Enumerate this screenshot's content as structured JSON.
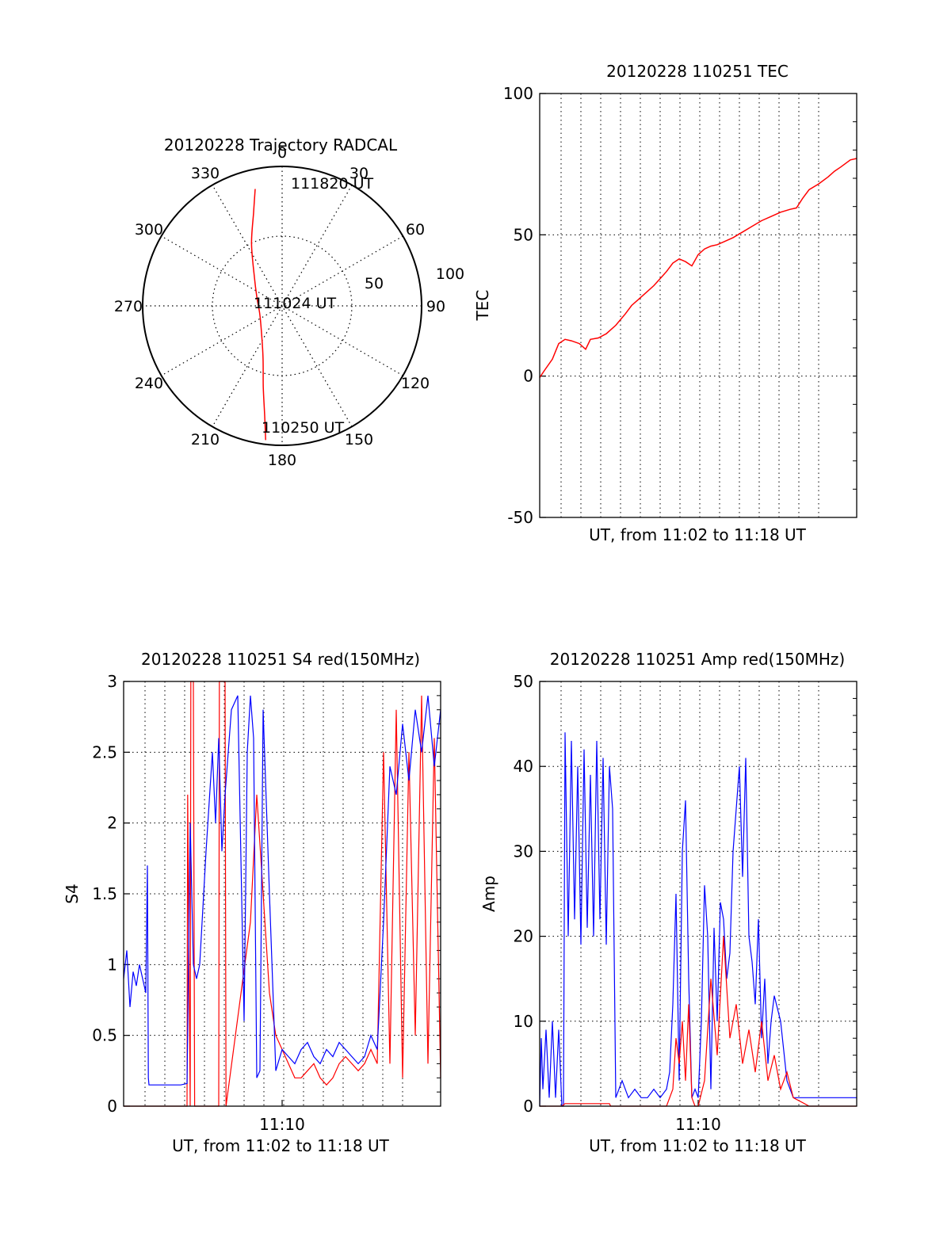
{
  "colors": {
    "red": "#ff0000",
    "blue": "#0000ff",
    "axis": "#000000",
    "grid": "#000000"
  },
  "chart_data": [
    {
      "id": "polar",
      "type": "polar-trajectory",
      "title": "20120228 Trajectory RADCAL",
      "angle_labels": [
        "0",
        "30",
        "60",
        "90",
        "120",
        "150",
        "180",
        "210",
        "240",
        "270",
        "300",
        "330"
      ],
      "radial_ticks": [
        {
          "value": 50,
          "label": "50"
        },
        {
          "value": 100,
          "label": "100"
        }
      ],
      "rlim": [
        0,
        100
      ],
      "trajectory": {
        "color": "red",
        "points": [
          {
            "az": 187,
            "r": 97
          },
          {
            "az": 189,
            "r": 80
          },
          {
            "az": 193,
            "r": 60
          },
          {
            "az": 200,
            "r": 40
          },
          {
            "az": 216,
            "r": 25
          },
          {
            "az": 251,
            "r": 17
          },
          {
            "az": 288,
            "r": 19
          },
          {
            "az": 318,
            "r": 30
          },
          {
            "az": 334,
            "r": 50
          },
          {
            "az": 343,
            "r": 70
          },
          {
            "az": 347,
            "r": 86
          }
        ]
      },
      "annotations": [
        {
          "text": "111820 UT",
          "az": 354,
          "r": 90
        },
        {
          "text": "111024 UT",
          "az": 0,
          "r": 0
        },
        {
          "text": "110250 UT",
          "az": 172,
          "r": 94
        }
      ]
    },
    {
      "id": "tec",
      "type": "line",
      "title": "20120228 110251 TEC",
      "xlabel": "UT, from 11:02 to 11:18 UT",
      "ylabel": "TEC",
      "xlim": [
        0,
        1
      ],
      "ylim": [
        -50,
        100
      ],
      "yticks": [
        -50,
        0,
        50,
        100
      ],
      "xticks": [],
      "xtick_labels": [],
      "grid": true,
      "series": [
        {
          "color": "red",
          "x": [
            0.0,
            0.015,
            0.04,
            0.06,
            0.08,
            0.1,
            0.125,
            0.145,
            0.16,
            0.185,
            0.21,
            0.24,
            0.27,
            0.29,
            0.31,
            0.34,
            0.36,
            0.38,
            0.4,
            0.42,
            0.44,
            0.46,
            0.48,
            0.5,
            0.52,
            0.54,
            0.56,
            0.58,
            0.61,
            0.64,
            0.67,
            0.7,
            0.73,
            0.76,
            0.79,
            0.81,
            0.83,
            0.85,
            0.88,
            0.91,
            0.93,
            0.95,
            0.98,
            1.0
          ],
          "y": [
            -0.5,
            2.0,
            6.0,
            11.5,
            13.0,
            12.5,
            11.5,
            9.5,
            13.0,
            13.5,
            15.0,
            18.0,
            22.0,
            25.0,
            27.0,
            30.0,
            32.0,
            34.5,
            37.0,
            40.0,
            41.5,
            40.5,
            39.0,
            43.0,
            45.0,
            46.0,
            46.5,
            47.5,
            49.0,
            51.0,
            53.0,
            55.0,
            56.5,
            58.0,
            59.0,
            59.5,
            63.0,
            66.0,
            68.0,
            70.5,
            72.5,
            74.0,
            76.5,
            77.0
          ]
        }
      ]
    },
    {
      "id": "s4",
      "type": "line",
      "title": "20120228 110251 S4 red(150MHz)",
      "xlabel": "UT, from 11:02 to 11:18 UT",
      "ylabel": "S4",
      "xlim": [
        0,
        1
      ],
      "ylim": [
        0,
        3
      ],
      "yticks": [
        0,
        0.5,
        1,
        1.5,
        2,
        2.5,
        3
      ],
      "ytick_labels": [
        "0",
        "0.5",
        "1",
        "1.5",
        "2",
        "2.5",
        "3"
      ],
      "xticks": [
        0.5
      ],
      "xtick_labels": [
        "11:10"
      ],
      "grid": true,
      "series": [
        {
          "color": "red",
          "x": [
            0.0,
            0.04,
            0.08,
            0.19,
            0.2,
            0.202,
            0.21,
            0.212,
            0.22,
            0.224,
            0.3,
            0.302,
            0.32,
            0.323,
            0.4,
            0.42,
            0.44,
            0.46,
            0.48,
            0.5,
            0.52,
            0.54,
            0.56,
            0.58,
            0.6,
            0.62,
            0.64,
            0.66,
            0.68,
            0.7,
            0.72,
            0.74,
            0.76,
            0.78,
            0.8,
            0.82,
            0.84,
            0.86,
            0.88,
            0.9,
            0.92,
            0.94,
            0.96,
            0.98,
            1.0
          ],
          "y": [
            0,
            0,
            0,
            0,
            0,
            2.2,
            0,
            3,
            3,
            0,
            0,
            3,
            3,
            0,
            1.3,
            2.2,
            1.5,
            0.8,
            0.5,
            0.4,
            0.3,
            0.2,
            0.2,
            0.25,
            0.3,
            0.2,
            0.15,
            0.2,
            0.3,
            0.35,
            0.3,
            0.25,
            0.3,
            0.4,
            0.3,
            2.5,
            0.3,
            2.8,
            0.2,
            2.5,
            0.5,
            2.9,
            0.3,
            2.6,
            0.2
          ]
        },
        {
          "color": "blue",
          "x": [
            0.0,
            0.01,
            0.02,
            0.03,
            0.04,
            0.05,
            0.06,
            0.07,
            0.075,
            0.078,
            0.08,
            0.1,
            0.14,
            0.18,
            0.2,
            0.21,
            0.22,
            0.23,
            0.24,
            0.26,
            0.28,
            0.29,
            0.3,
            0.31,
            0.32,
            0.34,
            0.36,
            0.38,
            0.39,
            0.4,
            0.41,
            0.42,
            0.43,
            0.44,
            0.46,
            0.48,
            0.5,
            0.52,
            0.54,
            0.56,
            0.58,
            0.6,
            0.62,
            0.64,
            0.66,
            0.68,
            0.7,
            0.72,
            0.74,
            0.76,
            0.78,
            0.8,
            0.82,
            0.84,
            0.86,
            0.88,
            0.9,
            0.92,
            0.94,
            0.96,
            0.98,
            1.0
          ],
          "y": [
            0.9,
            1.1,
            0.7,
            0.95,
            0.85,
            1.0,
            0.9,
            0.8,
            1.7,
            0.2,
            0.15,
            0.15,
            0.15,
            0.15,
            0.16,
            2.0,
            1.0,
            0.9,
            1.0,
            1.8,
            2.5,
            2.0,
            2.6,
            1.8,
            2.2,
            2.8,
            2.9,
            0.6,
            2.5,
            2.9,
            2.6,
            0.2,
            0.25,
            2.8,
            1.5,
            0.25,
            0.4,
            0.35,
            0.3,
            0.4,
            0.45,
            0.35,
            0.3,
            0.4,
            0.35,
            0.45,
            0.4,
            0.35,
            0.3,
            0.35,
            0.5,
            0.4,
            1.3,
            2.4,
            2.2,
            2.7,
            2.3,
            2.8,
            2.5,
            2.9,
            2.4,
            2.8
          ]
        }
      ]
    },
    {
      "id": "amp",
      "type": "line",
      "title": "20120228 110251 Amp red(150MHz)",
      "xlabel": "UT, from 11:02 to 11:18 UT",
      "ylabel": "Amp",
      "xlim": [
        0,
        1
      ],
      "ylim": [
        0,
        50
      ],
      "yticks": [
        0,
        10,
        20,
        30,
        40,
        50
      ],
      "ytick_labels": [
        "0",
        "10",
        "20",
        "30",
        "40",
        "50"
      ],
      "xticks": [
        0.5
      ],
      "xtick_labels": [
        "11:10"
      ],
      "grid": true,
      "series": [
        {
          "color": "blue",
          "x": [
            0.0,
            0.005,
            0.01,
            0.02,
            0.03,
            0.04,
            0.05,
            0.06,
            0.07,
            0.075,
            0.08,
            0.09,
            0.1,
            0.11,
            0.12,
            0.13,
            0.14,
            0.15,
            0.16,
            0.17,
            0.18,
            0.19,
            0.2,
            0.21,
            0.22,
            0.23,
            0.24,
            0.26,
            0.28,
            0.3,
            0.32,
            0.34,
            0.36,
            0.38,
            0.4,
            0.41,
            0.42,
            0.43,
            0.44,
            0.45,
            0.46,
            0.47,
            0.48,
            0.49,
            0.5,
            0.51,
            0.52,
            0.53,
            0.54,
            0.55,
            0.56,
            0.57,
            0.58,
            0.59,
            0.6,
            0.61,
            0.62,
            0.63,
            0.64,
            0.65,
            0.66,
            0.67,
            0.68,
            0.69,
            0.7,
            0.71,
            0.72,
            0.73,
            0.74,
            0.76,
            0.78,
            0.8,
            0.85,
            0.9,
            0.95,
            1.0
          ],
          "y": [
            0,
            8,
            2,
            9,
            1,
            10,
            1,
            9,
            0,
            0,
            44,
            20,
            43,
            22,
            40,
            19,
            42,
            21,
            39,
            20,
            43,
            22,
            41,
            19,
            40,
            35,
            1,
            3,
            1,
            2,
            1,
            1,
            2,
            1,
            2,
            4,
            12,
            25,
            3,
            30,
            36,
            15,
            1,
            2,
            1,
            10,
            26,
            20,
            2,
            21,
            10,
            24,
            22,
            15,
            18,
            30,
            35,
            40,
            27,
            41,
            20,
            17,
            12,
            22,
            8,
            15,
            5,
            10,
            13,
            10,
            3,
            1,
            1,
            1,
            1,
            1
          ]
        },
        {
          "color": "red",
          "x": [
            0.0,
            0.06,
            0.07,
            0.08,
            0.1,
            0.15,
            0.2,
            0.22,
            0.224,
            0.3,
            0.4,
            0.42,
            0.43,
            0.44,
            0.45,
            0.46,
            0.47,
            0.48,
            0.49,
            0.5,
            0.52,
            0.54,
            0.56,
            0.58,
            0.6,
            0.62,
            0.64,
            0.66,
            0.68,
            0.7,
            0.72,
            0.74,
            0.76,
            0.78,
            0.8,
            0.85,
            1.0
          ],
          "y": [
            0,
            0,
            0,
            0.3,
            0.3,
            0.3,
            0.3,
            0.3,
            0,
            0,
            0,
            2,
            8,
            5,
            10,
            3,
            12,
            1,
            0,
            0,
            3,
            15,
            6,
            20,
            8,
            12,
            5,
            9,
            4,
            10,
            3,
            6,
            2,
            4,
            1,
            0,
            0
          ]
        }
      ]
    }
  ]
}
